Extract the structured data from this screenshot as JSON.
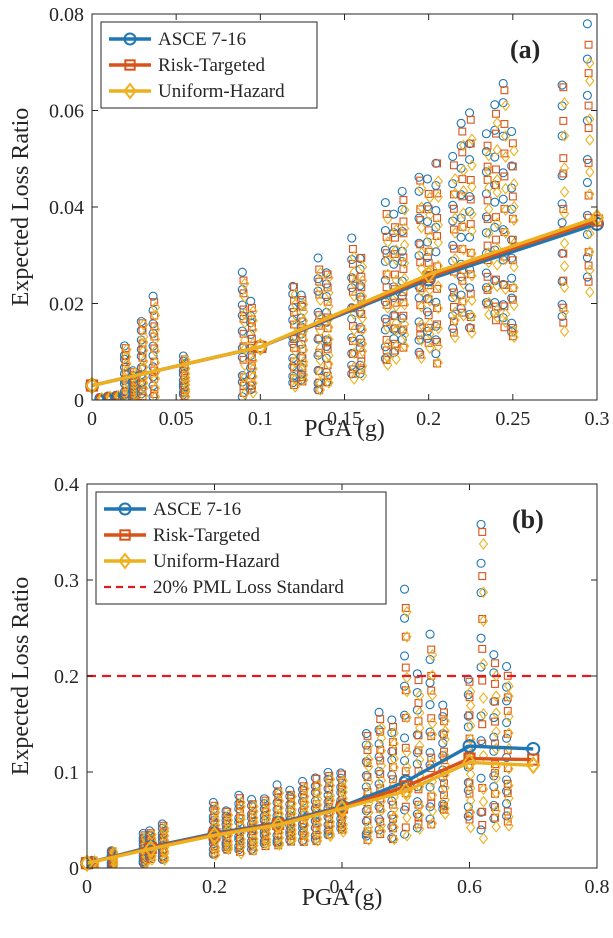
{
  "colors": {
    "asce": "#1f77b4",
    "risk": "#d95319",
    "uniform": "#edb120",
    "pml": "#e41a1c",
    "axis": "#262626"
  },
  "chart_data": [
    {
      "type": "scatter",
      "panel_label": "(a)",
      "xlabel": "PGA (g)",
      "ylabel": "Expected Loss Ratio",
      "xlim": [
        0,
        0.3
      ],
      "ylim": [
        0,
        0.08
      ],
      "xticks": [
        0,
        0.05,
        0.1,
        0.15,
        0.2,
        0.25,
        0.3
      ],
      "xtick_labels": [
        "0",
        "0.05",
        "0.1",
        "0.15",
        "0.2",
        "0.25",
        "0.3"
      ],
      "yticks": [
        0,
        0.02,
        0.04,
        0.06,
        0.08
      ],
      "ytick_labels": [
        "0",
        "0.02",
        "0.04",
        "0.06",
        "0.08"
      ],
      "grid": false,
      "legend_position": "top-left",
      "legend": [
        "ASCE 7-16",
        "Risk-Targeted",
        "Uniform-Hazard"
      ],
      "mean_lines": [
        {
          "name": "ASCE 7-16",
          "color_key": "asce",
          "marker": "circle",
          "x": [
            0,
            0.1,
            0.2,
            0.3
          ],
          "y": [
            0.003,
            0.011,
            0.025,
            0.0365
          ]
        },
        {
          "name": "Risk-Targeted",
          "color_key": "risk",
          "marker": "square",
          "x": [
            0,
            0.1,
            0.2,
            0.3
          ],
          "y": [
            0.003,
            0.011,
            0.0255,
            0.0372
          ]
        },
        {
          "name": "Uniform-Hazard",
          "color_key": "uniform",
          "marker": "diamond",
          "x": [
            0,
            0.1,
            0.2,
            0.3
          ],
          "y": [
            0.003,
            0.011,
            0.026,
            0.0378
          ]
        }
      ],
      "scatter_columns": [
        {
          "x": 0.005,
          "min": 0.0,
          "max": 0.0005
        },
        {
          "x": 0.01,
          "min": 0.0,
          "max": 0.0008
        },
        {
          "x": 0.015,
          "min": 0.0,
          "max": 0.001
        },
        {
          "x": 0.02,
          "min": 0.0,
          "max": 0.011
        },
        {
          "x": 0.025,
          "min": 0.0,
          "max": 0.006
        },
        {
          "x": 0.03,
          "min": 0.001,
          "max": 0.0165
        },
        {
          "x": 0.037,
          "min": 0.001,
          "max": 0.021
        },
        {
          "x": 0.055,
          "min": 0.001,
          "max": 0.009
        },
        {
          "x": 0.09,
          "min": 0.001,
          "max": 0.0265
        },
        {
          "x": 0.095,
          "min": 0.002,
          "max": 0.02
        },
        {
          "x": 0.12,
          "min": 0.003,
          "max": 0.024
        },
        {
          "x": 0.125,
          "min": 0.004,
          "max": 0.022
        },
        {
          "x": 0.135,
          "min": 0.002,
          "max": 0.029
        },
        {
          "x": 0.14,
          "min": 0.004,
          "max": 0.027
        },
        {
          "x": 0.155,
          "min": 0.005,
          "max": 0.033
        },
        {
          "x": 0.16,
          "min": 0.006,
          "max": 0.03
        },
        {
          "x": 0.175,
          "min": 0.008,
          "max": 0.04
        },
        {
          "x": 0.18,
          "min": 0.01,
          "max": 0.038
        },
        {
          "x": 0.185,
          "min": 0.012,
          "max": 0.043
        },
        {
          "x": 0.195,
          "min": 0.01,
          "max": 0.047
        },
        {
          "x": 0.2,
          "min": 0.012,
          "max": 0.045
        },
        {
          "x": 0.205,
          "min": 0.009,
          "max": 0.05
        },
        {
          "x": 0.215,
          "min": 0.014,
          "max": 0.05
        },
        {
          "x": 0.22,
          "min": 0.018,
          "max": 0.058
        },
        {
          "x": 0.225,
          "min": 0.015,
          "max": 0.06
        },
        {
          "x": 0.235,
          "min": 0.02,
          "max": 0.056
        },
        {
          "x": 0.24,
          "min": 0.018,
          "max": 0.062
        },
        {
          "x": 0.245,
          "min": 0.016,
          "max": 0.067
        },
        {
          "x": 0.25,
          "min": 0.013,
          "max": 0.055
        },
        {
          "x": 0.28,
          "min": 0.017,
          "max": 0.066
        },
        {
          "x": 0.295,
          "min": 0.024,
          "max": 0.077
        }
      ]
    },
    {
      "type": "scatter",
      "panel_label": "(b)",
      "xlabel": "PGA (g)",
      "ylabel": "Expected Loss Ratio",
      "xlim": [
        0,
        0.8
      ],
      "ylim": [
        0,
        0.4
      ],
      "xticks": [
        0,
        0.2,
        0.4,
        0.6,
        0.8
      ],
      "xtick_labels": [
        "0",
        "0.2",
        "0.4",
        "0.6",
        "0.8"
      ],
      "yticks": [
        0,
        0.1,
        0.2,
        0.3,
        0.4
      ],
      "ytick_labels": [
        "0",
        "0.1",
        "0.2",
        "0.3",
        "0.4"
      ],
      "grid": false,
      "legend_position": "top-left",
      "legend": [
        "ASCE 7-16",
        "Risk-Targeted",
        "Uniform-Hazard",
        "20% PML Loss Standard"
      ],
      "reference_line": {
        "name": "20% PML Loss Standard",
        "y": 0.2,
        "color_key": "pml",
        "style": "dashed"
      },
      "mean_lines": [
        {
          "name": "ASCE 7-16",
          "color_key": "asce",
          "marker": "circle",
          "x": [
            0,
            0.1,
            0.2,
            0.3,
            0.4,
            0.5,
            0.6,
            0.7
          ],
          "y": [
            0.005,
            0.022,
            0.036,
            0.047,
            0.064,
            0.09,
            0.127,
            0.124
          ]
        },
        {
          "name": "Risk-Targeted",
          "color_key": "risk",
          "marker": "square",
          "x": [
            0,
            0.1,
            0.2,
            0.3,
            0.4,
            0.5,
            0.6,
            0.7
          ],
          "y": [
            0.005,
            0.021,
            0.035,
            0.046,
            0.063,
            0.085,
            0.114,
            0.113
          ]
        },
        {
          "name": "Uniform-Hazard",
          "color_key": "uniform",
          "marker": "diamond",
          "x": [
            0,
            0.1,
            0.2,
            0.3,
            0.4,
            0.5,
            0.6,
            0.7
          ],
          "y": [
            0.005,
            0.02,
            0.034,
            0.045,
            0.062,
            0.08,
            0.11,
            0.107
          ]
        }
      ],
      "scatter_columns": [
        {
          "x": 0.01,
          "min": 0.0,
          "max": 0.008
        },
        {
          "x": 0.04,
          "min": 0.002,
          "max": 0.018
        },
        {
          "x": 0.09,
          "min": 0.005,
          "max": 0.036
        },
        {
          "x": 0.1,
          "min": 0.01,
          "max": 0.038
        },
        {
          "x": 0.12,
          "min": 0.01,
          "max": 0.045
        },
        {
          "x": 0.2,
          "min": 0.015,
          "max": 0.068
        },
        {
          "x": 0.22,
          "min": 0.02,
          "max": 0.06
        },
        {
          "x": 0.24,
          "min": 0.018,
          "max": 0.075
        },
        {
          "x": 0.26,
          "min": 0.02,
          "max": 0.07
        },
        {
          "x": 0.28,
          "min": 0.025,
          "max": 0.072
        },
        {
          "x": 0.3,
          "min": 0.025,
          "max": 0.085
        },
        {
          "x": 0.32,
          "min": 0.03,
          "max": 0.08
        },
        {
          "x": 0.34,
          "min": 0.03,
          "max": 0.09
        },
        {
          "x": 0.36,
          "min": 0.03,
          "max": 0.095
        },
        {
          "x": 0.38,
          "min": 0.035,
          "max": 0.1
        },
        {
          "x": 0.4,
          "min": 0.04,
          "max": 0.1
        },
        {
          "x": 0.44,
          "min": 0.03,
          "max": 0.14
        },
        {
          "x": 0.46,
          "min": 0.04,
          "max": 0.16
        },
        {
          "x": 0.48,
          "min": 0.035,
          "max": 0.155
        },
        {
          "x": 0.5,
          "min": 0.04,
          "max": 0.285
        },
        {
          "x": 0.52,
          "min": 0.045,
          "max": 0.2
        },
        {
          "x": 0.54,
          "min": 0.05,
          "max": 0.238
        },
        {
          "x": 0.56,
          "min": 0.06,
          "max": 0.17
        },
        {
          "x": 0.6,
          "min": 0.05,
          "max": 0.2
        },
        {
          "x": 0.62,
          "min": 0.04,
          "max": 0.36
        },
        {
          "x": 0.64,
          "min": 0.05,
          "max": 0.22
        },
        {
          "x": 0.66,
          "min": 0.05,
          "max": 0.21
        }
      ]
    }
  ]
}
